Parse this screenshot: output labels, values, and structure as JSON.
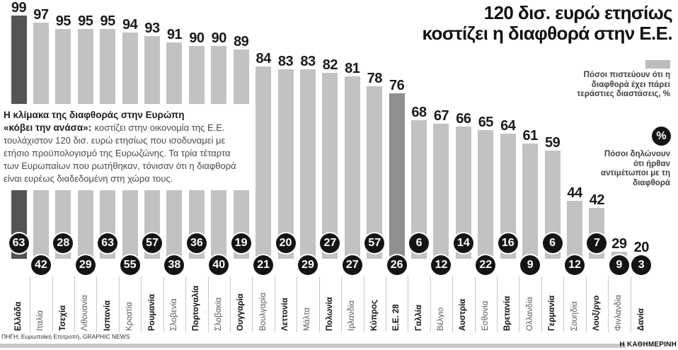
{
  "title": {
    "line1": "120 δισ. ευρώ ετησίως",
    "line2": "κοστίζει η διαφθορά στην Ε.Ε."
  },
  "intro": {
    "lead1": "Η κλίμακα της διαφθοράς στην Ευρώπη",
    "lead2": "«κόβει την ανάσα»:",
    "body": "κοστίζει στην οικονομία της Ε.Ε. τουλάχιστον 120 δισ. ευρώ ετησίως που ισοδυναμεί με ετήσιο προϋπολογισμό της Ευρωζώνης. Τα τρία τέταρτα των Ευρωπαίων που ρωτήθηκαν, τόνισαν ότι η διαφθορά είναι ευρέως διαδεδομένη στη χώρα τους."
  },
  "legend": {
    "bar_label": "Πόσοι πιστεύουν ότι η διαφθορά έχει πάρει τεράστιες διαστάσεις, %",
    "circle_symbol": "%",
    "circle_label": "Πόσοι δηλώνουν ότι ήρθαν αντιμέτωποι με τη διαφθορά"
  },
  "source": "ΠΗΓΗ: Ευρωπαϊκή Επιτροπή, GRAPHIC NEWS",
  "brand": "Η ΚΑΘΗΜΕΡΙΝΗ",
  "colors": {
    "bar_light": "#c2c2c2",
    "bar_greece": "#545454",
    "bar_eu28": "#8f8f8f",
    "circle": "#141414",
    "footer_bar": "#c9c9c9",
    "swatch": "#bcbcbc"
  },
  "chart_data": {
    "type": "bar",
    "title": "120 δισ. ευρώ ετησίως κοστίζει η διαφθορά στην Ε.Ε.",
    "ylim": [
      0,
      100
    ],
    "grid": false,
    "legend_position": "right",
    "categories": [
      "Ελλάδα",
      "Ιταλία",
      "Τσεχία",
      "Λιθουανία",
      "Ισπανία",
      "Κροατία",
      "Ρουμανία",
      "Σλοβενία",
      "Πορτογαλία",
      "Σλοβακία",
      "Ουγγαρία",
      "Βουλγαρία",
      "Λεττονία",
      "Μάλτα",
      "Πολωνία",
      "Ιρλανδία",
      "Κύπρος",
      "Ε.Ε. 28",
      "Γαλλία",
      "Βέλγιο",
      "Αυστρία",
      "Εσθονία",
      "Βρετανία",
      "Ολλανδία",
      "Γερμανία",
      "Σουηδία",
      "Λουξ/ργο",
      "Φινλανδία",
      "Δανία"
    ],
    "series": [
      {
        "name": "Πόσοι πιστεύουν ότι η διαφθορά έχει πάρει τεράστιες διαστάσεις, %",
        "values": [
          99,
          97,
          95,
          95,
          95,
          94,
          93,
          91,
          90,
          90,
          89,
          84,
          83,
          83,
          82,
          81,
          78,
          76,
          68,
          67,
          66,
          65,
          64,
          61,
          59,
          44,
          42,
          29,
          20
        ]
      },
      {
        "name": "Πόσοι δηλώνουν ότι ήρθαν αντιμέτωποι με τη διαφθορά, %",
        "values": [
          63,
          42,
          28,
          29,
          63,
          55,
          57,
          38,
          36,
          40,
          19,
          21,
          20,
          29,
          27,
          27,
          57,
          26,
          6,
          12,
          14,
          22,
          16,
          9,
          6,
          12,
          7,
          9,
          3
        ]
      }
    ],
    "highlighted": [
      "Ελλάδα",
      "Ε.Ε. 28"
    ],
    "circle_row": [
      "up",
      "down",
      "up",
      "down",
      "up",
      "down",
      "up",
      "down",
      "up",
      "down",
      "up",
      "down",
      "up",
      "down",
      "up",
      "down",
      "up",
      "down",
      "up",
      "down",
      "up",
      "down",
      "up",
      "down",
      "up",
      "down",
      "up",
      "down",
      "down"
    ],
    "bold_labels": [
      true,
      false,
      true,
      false,
      true,
      false,
      true,
      false,
      true,
      false,
      true,
      false,
      true,
      false,
      true,
      false,
      true,
      true,
      true,
      false,
      true,
      false,
      true,
      false,
      true,
      false,
      true,
      false,
      true
    ]
  }
}
